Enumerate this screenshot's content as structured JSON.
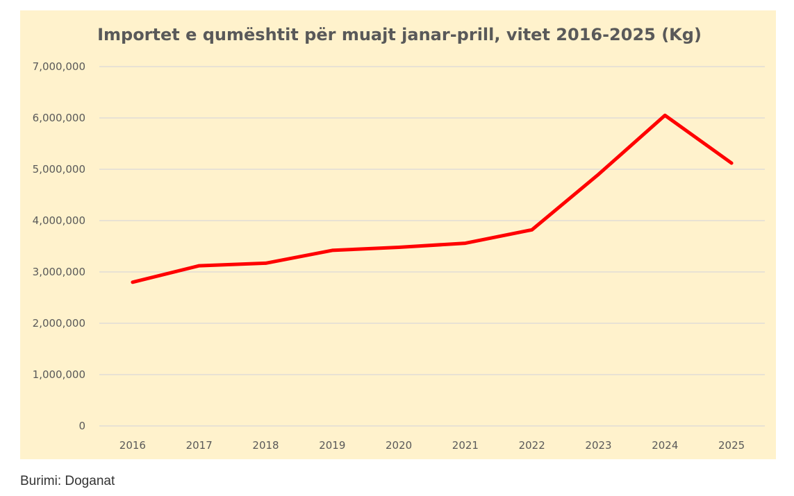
{
  "colors": {
    "panel_background": "#FFF2CC",
    "line": "#FF0000",
    "text": "#595959",
    "grid": "#D9D9D9"
  },
  "caption": "Burimi: Doganat",
  "chart_data": {
    "type": "line",
    "title": "Importet e qumështit për muajt janar-prill, vitet 2016-2025 (Kg)",
    "xlabel": "",
    "ylabel": "",
    "categories": [
      "2016",
      "2017",
      "2018",
      "2019",
      "2020",
      "2021",
      "2022",
      "2023",
      "2024",
      "2025"
    ],
    "series": [
      {
        "values": [
          2800000,
          3120000,
          3170000,
          3420000,
          3480000,
          3560000,
          3820000,
          4900000,
          6050000,
          5120000
        ]
      }
    ],
    "ylim": [
      0,
      7000000
    ],
    "yticks": [
      0,
      1000000,
      2000000,
      3000000,
      4000000,
      5000000,
      6000000,
      7000000
    ],
    "ytick_labels": [
      "0",
      "1,000,000",
      "2,000,000",
      "3,000,000",
      "4,000,000",
      "5,000,000",
      "6,000,000",
      "7,000,000"
    ],
    "grid": true,
    "legend": "none"
  }
}
